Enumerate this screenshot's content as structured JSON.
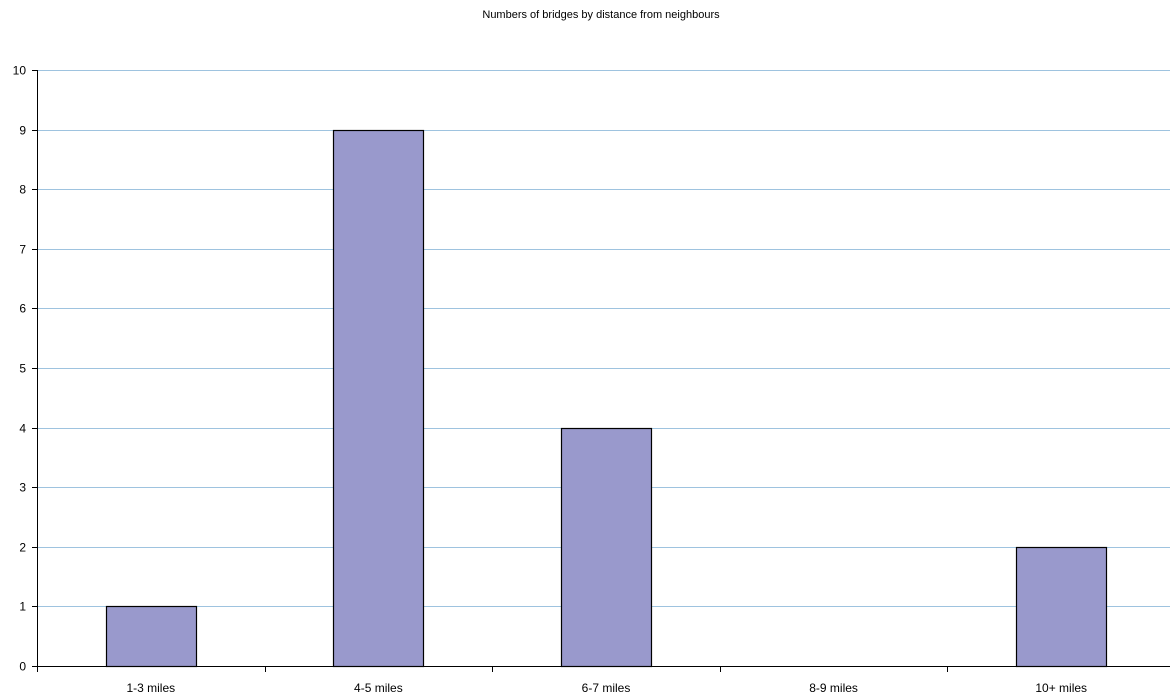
{
  "chart_data": {
    "type": "bar",
    "title": "Numbers of bridges by distance from neighbours",
    "xlabel": "",
    "ylabel": "",
    "categories": [
      "1-3 miles",
      "4-5 miles",
      "6-7 miles",
      "8-9 miles",
      "10+ miles"
    ],
    "values": [
      1,
      9,
      4,
      0,
      2
    ],
    "ylim": [
      0,
      10
    ],
    "yticks": [
      0,
      1,
      2,
      3,
      4,
      5,
      6,
      7,
      8,
      9,
      10
    ],
    "grid": true,
    "legend": "none",
    "colors": {
      "bar_fill": "#9999cc",
      "bar_stroke": "#000000",
      "gridline": "#9ec3df",
      "axis": "#000000"
    }
  }
}
